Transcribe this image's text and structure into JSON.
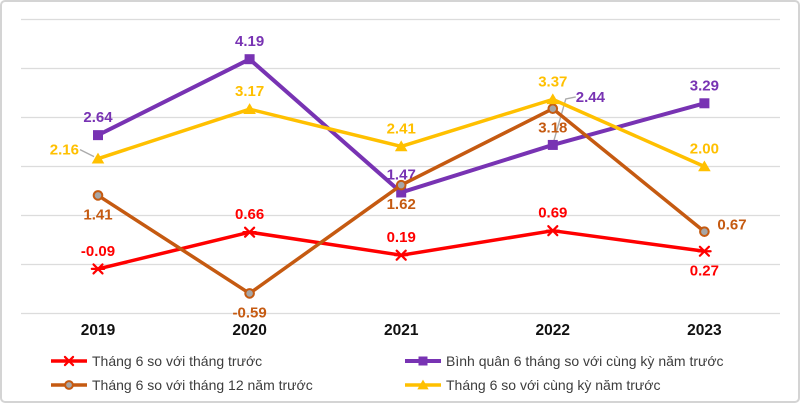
{
  "chart_data": {
    "type": "line",
    "categories": [
      "2019",
      "2020",
      "2021",
      "2022",
      "2023"
    ],
    "ylim": [
      -1,
      5
    ],
    "grid": {
      "show": true,
      "step": 1
    },
    "legend_position": "bottom-two-columns",
    "series": [
      {
        "name": "Tháng 6 so với tháng trước",
        "color": "#FF0000",
        "marker": "star",
        "line_width": 3.5,
        "values": [
          -0.09,
          0.66,
          0.19,
          0.69,
          0.27
        ],
        "labels": [
          "-0.09",
          "0.66",
          "0.19",
          "0.69",
          "0.27"
        ],
        "label_placement": [
          "above",
          "above",
          "above",
          "above",
          "below"
        ]
      },
      {
        "name": "Bình quân 6 tháng so với cùng kỳ năm trước",
        "color": "#7833B3",
        "marker": "square",
        "line_width": 4,
        "values": [
          2.64,
          4.19,
          1.47,
          2.44,
          3.29
        ],
        "labels": [
          "2.64",
          "4.19",
          "1.47",
          "2.44",
          "3.29"
        ],
        "label_placement": [
          "above",
          "above",
          "above",
          "leader-right",
          "above"
        ]
      },
      {
        "name": "Tháng 6 so với tháng 12 năm trước",
        "color": "#C55A11",
        "marker": "circle",
        "marker_fill": "#A6A6A6",
        "line_width": 3.5,
        "values": [
          1.41,
          -0.59,
          1.62,
          3.18,
          0.67
        ],
        "labels": [
          "1.41",
          "-0.59",
          "1.62",
          "3.18",
          "0.67"
        ],
        "label_placement": [
          "below",
          "below",
          "below",
          "below",
          "right"
        ]
      },
      {
        "name": "Tháng 6 so với cùng kỳ năm trước",
        "color": "#FFC000",
        "marker": "triangle",
        "line_width": 3.5,
        "values": [
          2.16,
          3.17,
          2.41,
          3.37,
          2.0
        ],
        "labels": [
          "2.16",
          "3.17",
          "2.41",
          "3.37",
          "2.00"
        ],
        "label_placement": [
          "leader-left",
          "above",
          "above",
          "above",
          "above"
        ]
      }
    ],
    "colors": {
      "grid": "#dcdcdc",
      "leader": "#ababab",
      "axis_text": "#111111",
      "legend_text": "#3d3d3d",
      "background": "#ffffff",
      "border": "#d4d4d4"
    }
  }
}
